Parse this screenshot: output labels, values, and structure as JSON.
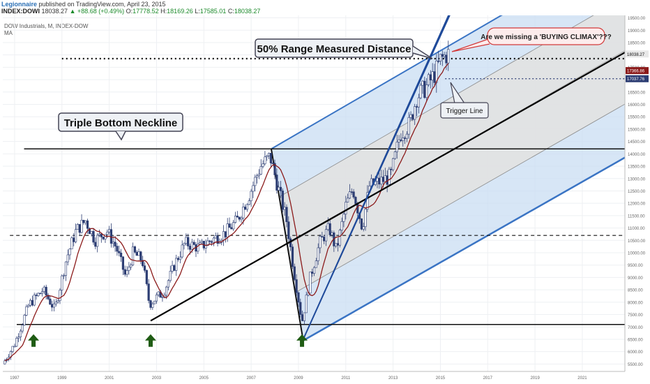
{
  "header": {
    "author": "Legionnaire",
    "published": "published on TradingView.com, April 23, 2015",
    "symbol": "INDEX:DOWI",
    "last": "18038.27",
    "change": "+88.68 (+0.49%)",
    "open_label": "O:",
    "open": "17778.52",
    "high_label": "H:",
    "high": "18169.26",
    "low_label": "L:",
    "low": "17585.01",
    "close_label": "C:",
    "close": "18038.27"
  },
  "legend": {
    "line1": "DOW Industrials, M, INDEX-DOW",
    "line2": "MA"
  },
  "annotations": {
    "triple_bottom": "Triple Bottom Neckline",
    "measured": "50% Range Measured Distance",
    "climax": "Are we missing a 'BUYING CLIMAX'???",
    "trigger": "Trigger Line"
  },
  "colors": {
    "up_candle": "#ffffff",
    "down_candle": "#2c3d73",
    "ma": "#8b1a1a",
    "channel_fill": "#c9ddf3",
    "channel_line": "#3a74c4",
    "trend_line": "#000000",
    "arrow": "#1f5c14",
    "badge_last": "#e8e8e8",
    "badge_ma": "#8b1a1a",
    "badge_trigger": "#2c3d73"
  },
  "chart_data": {
    "type": "candlestick",
    "timeframe": "Monthly",
    "x_range": [
      1996.5,
      2022.8
    ],
    "y_range": [
      5200,
      19600
    ],
    "x_ticks": [
      "1997",
      "1999",
      "2001",
      "2003",
      "2005",
      "2007",
      "2009",
      "2011",
      "2013",
      "2015",
      "2017",
      "2019",
      "2021"
    ],
    "y_ticks": [
      "19500.00",
      "19000.00",
      "18500.00",
      "18000.00",
      "17500.00",
      "17000.00",
      "16500.00",
      "16000.00",
      "15500.00",
      "15000.00",
      "14500.00",
      "14000.00",
      "13500.00",
      "13000.00",
      "12500.00",
      "12000.00",
      "11500.00",
      "11000.00",
      "10500.00",
      "10000.00",
      "9500.00",
      "9000.00",
      "8500.00",
      "8000.00",
      "7500.00",
      "7000.00",
      "6500.00",
      "6000.00",
      "5500.00"
    ],
    "price_anchors": [
      [
        1996.5,
        5500
      ],
      [
        1997.0,
        6300
      ],
      [
        1997.6,
        7900
      ],
      [
        1998.2,
        8500
      ],
      [
        1998.7,
        7700
      ],
      [
        1999.2,
        9800
      ],
      [
        1999.6,
        10900
      ],
      [
        2000.0,
        11300
      ],
      [
        2000.4,
        10500
      ],
      [
        2000.9,
        10900
      ],
      [
        2001.3,
        10200
      ],
      [
        2001.7,
        9000
      ],
      [
        2002.0,
        10000
      ],
      [
        2002.4,
        9700
      ],
      [
        2002.7,
        7900
      ],
      [
        2003.0,
        8200
      ],
      [
        2003.3,
        8400
      ],
      [
        2003.8,
        9600
      ],
      [
        2004.2,
        10400
      ],
      [
        2004.8,
        10200
      ],
      [
        2005.3,
        10500
      ],
      [
        2005.9,
        10800
      ],
      [
        2006.4,
        11300
      ],
      [
        2006.9,
        12300
      ],
      [
        2007.4,
        13500
      ],
      [
        2007.8,
        13900
      ],
      [
        2008.2,
        12400
      ],
      [
        2008.5,
        11300
      ],
      [
        2008.8,
        9300
      ],
      [
        2009.15,
        7200
      ],
      [
        2009.5,
        9000
      ],
      [
        2009.9,
        10400
      ],
      [
        2010.3,
        11000
      ],
      [
        2010.6,
        10100
      ],
      [
        2011.0,
        11900
      ],
      [
        2011.3,
        12600
      ],
      [
        2011.7,
        11000
      ],
      [
        2012.0,
        12700
      ],
      [
        2012.5,
        12900
      ],
      [
        2012.9,
        13100
      ],
      [
        2013.3,
        14800
      ],
      [
        2013.7,
        15200
      ],
      [
        2014.0,
        16300
      ],
      [
        2014.4,
        16700
      ],
      [
        2014.8,
        17300
      ],
      [
        2015.0,
        17800
      ],
      [
        2015.3,
        18038
      ]
    ],
    "last_price": 18038.27,
    "ma_last": 17366.86,
    "trigger_value": 17037.76,
    "horizontal_levels": [
      {
        "value": 7100,
        "style": "solid"
      },
      {
        "value": 10700,
        "style": "dashed"
      },
      {
        "value": 14200,
        "style": "solid"
      },
      {
        "value": 17850,
        "style": "dotted"
      }
    ],
    "trend_lines": [
      {
        "from": [
          2002.75,
          7250
        ],
        "to": [
          2022.8,
          18100
        ]
      }
    ],
    "channel": {
      "start": [
        2007.85,
        14200
      ],
      "end": [
        2022.8,
        22500
      ],
      "bottom_start": [
        2009.2,
        6450
      ],
      "bottom_end": [
        2022.8,
        13850
      ]
    },
    "steep_channel": [
      {
        "from": [
          2009.2,
          6500
        ],
        "to": [
          2017.0,
          23000
        ]
      },
      {
        "from": [
          2009.2,
          6500
        ],
        "to": [
          2016.0,
          21000
        ]
      }
    ],
    "marked_lows": [
      [
        1997.8,
        7200
      ],
      [
        2002.75,
        7200
      ],
      [
        2009.15,
        6700
      ]
    ],
    "legend": "none"
  }
}
